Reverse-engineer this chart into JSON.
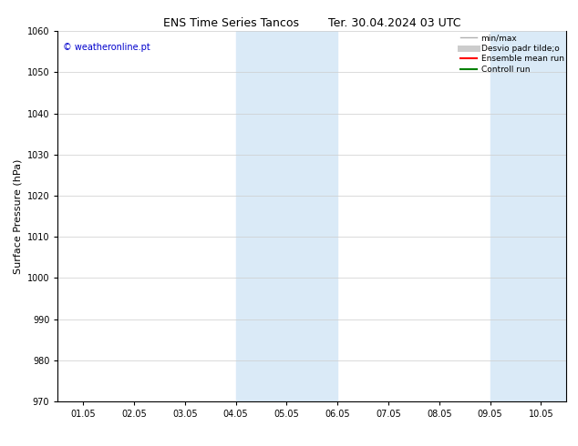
{
  "title_left": "ENS Time Series Tancos",
  "title_right": "Ter. 30.04.2024 03 UTC",
  "ylabel": "Surface Pressure (hPa)",
  "ylim": [
    970,
    1060
  ],
  "yticks": [
    970,
    980,
    990,
    1000,
    1010,
    1020,
    1030,
    1040,
    1050,
    1060
  ],
  "xlim": [
    0,
    10
  ],
  "xtick_labels": [
    "01.05",
    "02.05",
    "03.05",
    "04.05",
    "05.05",
    "06.05",
    "07.05",
    "08.05",
    "09.05",
    "10.05"
  ],
  "xtick_positions": [
    0.5,
    1.5,
    2.5,
    3.5,
    4.5,
    5.5,
    6.5,
    7.5,
    8.5,
    9.5
  ],
  "shaded_regions": [
    {
      "x_start": 3.5,
      "x_end": 5.5
    },
    {
      "x_start": 8.5,
      "x_end": 10.0
    }
  ],
  "shade_color": "#daeaf7",
  "watermark_text": "© weatheronline.pt",
  "watermark_color": "#0000cc",
  "legend_items": [
    {
      "label": "min/max",
      "color": "#b0b0b0",
      "lw": 1
    },
    {
      "label": "Desvio padr tilde;o",
      "color": "#cccccc",
      "lw": 5
    },
    {
      "label": "Ensemble mean run",
      "color": "#ff0000",
      "lw": 1.5
    },
    {
      "label": "Controll run",
      "color": "#008000",
      "lw": 1.5
    }
  ],
  "bg_color": "#ffffff",
  "grid_color": "#cccccc",
  "title_fontsize": 9,
  "label_fontsize": 8,
  "tick_fontsize": 7,
  "watermark_fontsize": 7,
  "legend_fontsize": 6.5
}
